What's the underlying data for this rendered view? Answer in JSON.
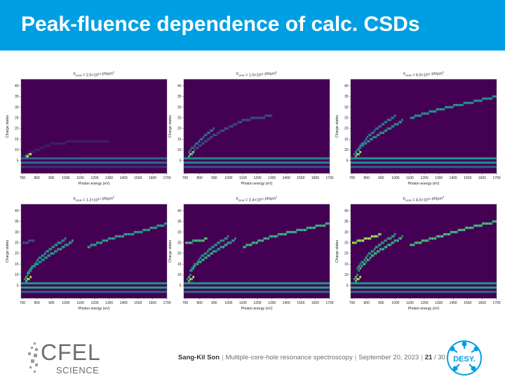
{
  "slide": {
    "title": "Peak-fluence dependence of calc. CSDs"
  },
  "footer": {
    "author": "Sang-Kil Son",
    "talk_title": "Multiple-core-hole resonance spectroscopy",
    "date": "September 20, 2023",
    "page_current": "21",
    "page_total": "/ 30",
    "logo_left_text": "CFEL",
    "logo_left_subtext": "SCIENCE",
    "logo_right_text": "DESY."
  },
  "colors": {
    "title_bar": "#009fe3",
    "map_background": "#440154",
    "map_low": "#3b528b",
    "map_mid": "#21918c",
    "map_high": "#5ec962",
    "map_peak": "#fde725"
  },
  "chart_data": [
    {
      "type": "heatmap",
      "title_prefix": "F",
      "title_sub": "peak",
      "title_value": " = 2.0×10",
      "title_exp": "10",
      "title_unit": " ph/μm",
      "title_unit_exp": "2",
      "xlabel": "Photon energy (eV)",
      "ylabel": "Charge states",
      "xlim": [
        690,
        1700
      ],
      "ylim": [
        -1,
        43
      ],
      "xticks": [
        "700",
        "800",
        "900",
        "1000",
        "1100",
        "1200",
        "1300",
        "1400",
        "1500",
        "1600",
        "1700"
      ],
      "yticks": [
        "5",
        "10",
        "15",
        "20",
        "25",
        "30",
        "35",
        "40"
      ],
      "bands": [
        {
          "q": 2,
          "level": 0.15
        },
        {
          "q": 4,
          "level": 0.35
        },
        {
          "q": 6,
          "level": 0.3
        }
      ],
      "ridges": [
        {
          "points": [
            [
              700,
              7
            ],
            [
              760,
              9
            ],
            [
              900,
              13
            ],
            [
              1100,
              14
            ],
            [
              1300,
              14
            ]
          ],
          "level": 0.1
        },
        {
          "points": [
            [
              720,
              7
            ],
            [
              760,
              8
            ]
          ],
          "level": 0.95
        }
      ]
    },
    {
      "type": "heatmap",
      "title_prefix": "F",
      "title_sub": "peak",
      "title_value": " = 1.0×10",
      "title_exp": "11",
      "title_unit": " ph/μm",
      "title_unit_exp": "2",
      "xlabel": "Photon energy (eV)",
      "ylabel": "Charge states",
      "xlim": [
        690,
        1700
      ],
      "ylim": [
        -1,
        43
      ],
      "xticks": [
        "700",
        "800",
        "900",
        "1000",
        "1100",
        "1200",
        "1300",
        "1400",
        "1500",
        "1600",
        "1700"
      ],
      "yticks": [
        "5",
        "10",
        "15",
        "20",
        "25",
        "30",
        "35",
        "40"
      ],
      "bands": [
        {
          "q": 2,
          "level": 0.25
        },
        {
          "q": 4,
          "level": 0.45
        },
        {
          "q": 6,
          "level": 0.45
        }
      ],
      "ridges": [
        {
          "points": [
            [
              720,
              7
            ],
            [
              760,
              10
            ],
            [
              850,
              15
            ],
            [
              950,
              19
            ],
            [
              1100,
              24
            ],
            [
              1300,
              26
            ]
          ],
          "level": 0.25
        },
        {
          "points": [
            [
              720,
              9
            ],
            [
              760,
              12
            ],
            [
              820,
              16
            ],
            [
              900,
              20
            ]
          ],
          "level": 0.4
        },
        {
          "points": [
            [
              720,
              7
            ],
            [
              760,
              9
            ]
          ],
          "level": 0.9
        }
      ]
    },
    {
      "type": "heatmap",
      "title_prefix": "F",
      "title_sub": "peak",
      "title_value": " = 6.0×10",
      "title_exp": "11",
      "title_unit": " ph/μm",
      "title_unit_exp": "2",
      "xlabel": "Photon energy (eV)",
      "ylabel": "Charge states",
      "xlim": [
        690,
        1700
      ],
      "ylim": [
        -1,
        43
      ],
      "xticks": [
        "700",
        "800",
        "900",
        "1000",
        "1100",
        "1200",
        "1300",
        "1400",
        "1500",
        "1600",
        "1700"
      ],
      "yticks": [
        "5",
        "10",
        "15",
        "20",
        "25",
        "30",
        "35",
        "40"
      ],
      "bands": [
        {
          "q": 2,
          "level": 0.3
        },
        {
          "q": 4,
          "level": 0.5
        },
        {
          "q": 6,
          "level": 0.5
        }
      ],
      "ridges": [
        {
          "points": [
            [
              710,
              8
            ],
            [
              760,
              12
            ],
            [
              850,
              16
            ],
            [
              950,
              20
            ],
            [
              1050,
              24
            ]
          ],
          "level": 0.55
        },
        {
          "points": [
            [
              730,
              10
            ],
            [
              800,
              16
            ],
            [
              900,
              22
            ],
            [
              1000,
              26
            ]
          ],
          "level": 0.45
        },
        {
          "points": [
            [
              1100,
              25
            ],
            [
              1300,
              29
            ],
            [
              1500,
              32
            ],
            [
              1700,
              35
            ]
          ],
          "level": 0.55
        },
        {
          "points": [
            [
              720,
              7
            ],
            [
              760,
              9
            ]
          ],
          "level": 1.0
        }
      ]
    },
    {
      "type": "heatmap",
      "title_prefix": "F",
      "title_sub": "peak",
      "title_value": " = 1.2×10",
      "title_exp": "12",
      "title_unit": " ph/μm",
      "title_unit_exp": "2",
      "xlabel": "Photon energy (eV)",
      "ylabel": "Charge states",
      "xlim": [
        690,
        1700
      ],
      "ylim": [
        -1,
        43
      ],
      "xticks": [
        "700",
        "800",
        "900",
        "1000",
        "1100",
        "1200",
        "1300",
        "1400",
        "1500",
        "1600",
        "1700"
      ],
      "yticks": [
        "5",
        "10",
        "15",
        "20",
        "25",
        "30",
        "35",
        "40"
      ],
      "bands": [
        {
          "q": 2,
          "level": 0.3
        },
        {
          "q": 4,
          "level": 0.55
        },
        {
          "q": 6,
          "level": 0.5
        }
      ],
      "ridges": [
        {
          "points": [
            [
              710,
              8
            ],
            [
              760,
              13
            ],
            [
              850,
              18
            ],
            [
              950,
              22
            ],
            [
              1050,
              26
            ]
          ],
          "level": 0.6
        },
        {
          "points": [
            [
              730,
              11
            ],
            [
              800,
              17
            ],
            [
              900,
              23
            ],
            [
              1000,
              27
            ]
          ],
          "level": 0.55
        },
        {
          "points": [
            [
              1150,
              23
            ],
            [
              1300,
              27
            ],
            [
              1500,
              30
            ],
            [
              1700,
              34
            ]
          ],
          "level": 0.6
        },
        {
          "points": [
            [
              700,
              25
            ],
            [
              780,
              26
            ]
          ],
          "level": 0.25
        },
        {
          "points": [
            [
              720,
              7
            ],
            [
              760,
              9
            ]
          ],
          "level": 1.0
        }
      ]
    },
    {
      "type": "heatmap",
      "title_prefix": "F",
      "title_sub": "peak",
      "title_value": " = 2.4×10",
      "title_exp": "12",
      "title_unit": " ph/μm",
      "title_unit_exp": "2",
      "xlabel": "Photon energy (eV)",
      "ylabel": "Charge states",
      "xlim": [
        690,
        1700
      ],
      "ylim": [
        -1,
        43
      ],
      "xticks": [
        "700",
        "800",
        "900",
        "1000",
        "1100",
        "1200",
        "1300",
        "1400",
        "1500",
        "1600",
        "1700"
      ],
      "yticks": [
        "5",
        "10",
        "15",
        "20",
        "25",
        "30",
        "35",
        "40"
      ],
      "bands": [
        {
          "q": 2,
          "level": 0.35
        },
        {
          "q": 4,
          "level": 0.55
        },
        {
          "q": 6,
          "level": 0.5
        }
      ],
      "ridges": [
        {
          "points": [
            [
              710,
              8
            ],
            [
              760,
              14
            ],
            [
              850,
              19
            ],
            [
              950,
              23
            ],
            [
              1050,
              27
            ]
          ],
          "level": 0.65
        },
        {
          "points": [
            [
              730,
              12
            ],
            [
              800,
              18
            ],
            [
              900,
              24
            ],
            [
              1000,
              28
            ]
          ],
          "level": 0.55
        },
        {
          "points": [
            [
              1100,
              23
            ],
            [
              1300,
              28
            ],
            [
              1500,
              31
            ],
            [
              1700,
              34
            ]
          ],
          "level": 0.7
        },
        {
          "points": [
            [
              700,
              25
            ],
            [
              800,
              26
            ],
            [
              850,
              27
            ]
          ],
          "level": 0.75
        },
        {
          "points": [
            [
              720,
              7
            ],
            [
              760,
              9
            ]
          ],
          "level": 1.0
        }
      ]
    },
    {
      "type": "heatmap",
      "title_prefix": "F",
      "title_sub": "peak",
      "title_value": " = 4.0×10",
      "title_exp": "12",
      "title_unit": " ph/μm",
      "title_unit_exp": "2",
      "xlabel": "Photon energy (eV)",
      "ylabel": "Charge states",
      "xlim": [
        690,
        1700
      ],
      "ylim": [
        -1,
        43
      ],
      "xticks": [
        "700",
        "800",
        "900",
        "1000",
        "1100",
        "1200",
        "1300",
        "1400",
        "1500",
        "1600",
        "1700"
      ],
      "yticks": [
        "5",
        "10",
        "15",
        "20",
        "25",
        "30",
        "35",
        "40"
      ],
      "bands": [
        {
          "q": 2,
          "level": 0.35
        },
        {
          "q": 4,
          "level": 0.55
        },
        {
          "q": 6,
          "level": 0.5
        }
      ],
      "ridges": [
        {
          "points": [
            [
              710,
              8
            ],
            [
              760,
              14
            ],
            [
              850,
              20
            ],
            [
              950,
              24
            ],
            [
              1050,
              28
            ]
          ],
          "level": 0.7
        },
        {
          "points": [
            [
              730,
              13
            ],
            [
              800,
              19
            ],
            [
              900,
              25
            ],
            [
              1000,
              29
            ]
          ],
          "level": 0.6
        },
        {
          "points": [
            [
              1100,
              24
            ],
            [
              1300,
              28
            ],
            [
              1500,
              32
            ],
            [
              1700,
              35
            ]
          ],
          "level": 0.75
        },
        {
          "points": [
            [
              700,
              25
            ],
            [
              800,
              27
            ],
            [
              900,
              29
            ]
          ],
          "level": 0.95
        },
        {
          "points": [
            [
              720,
              7
            ],
            [
              760,
              9
            ]
          ],
          "level": 1.0
        }
      ]
    }
  ]
}
